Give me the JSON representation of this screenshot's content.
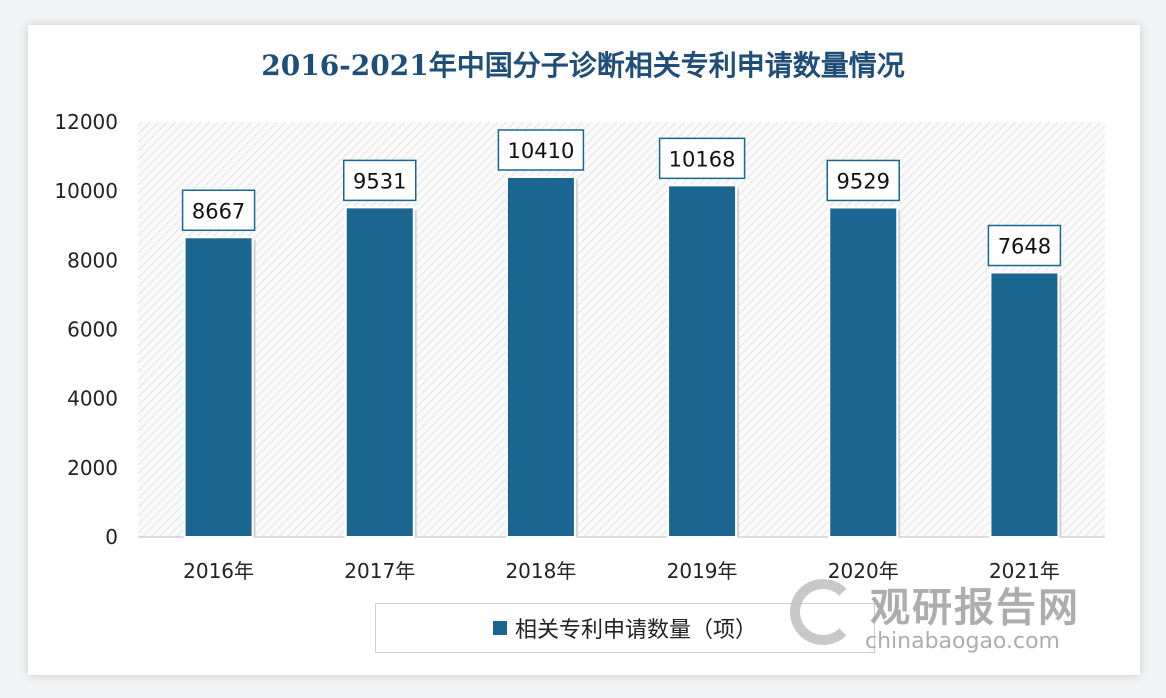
{
  "chart_data": {
    "type": "bar",
    "title": "2016-2021年中国分子诊断相关专利申请数量情况",
    "categories": [
      "2016年",
      "2017年",
      "2018年",
      "2019年",
      "2020年",
      "2021年"
    ],
    "series": [
      {
        "name": "相关专利申请数量（项）",
        "values": [
          8667,
          9531,
          10410,
          10168,
          9529,
          7648
        ]
      }
    ],
    "ylim": [
      0,
      12000
    ],
    "yticks": [
      0,
      2000,
      4000,
      6000,
      8000,
      10000,
      12000
    ],
    "grid": false,
    "legend": "bottom",
    "colors": {
      "bar": "#1a6690",
      "title": "#1f4e79"
    }
  },
  "watermark": {
    "cn": "观研报告网",
    "en": "chinabaogao.com"
  }
}
